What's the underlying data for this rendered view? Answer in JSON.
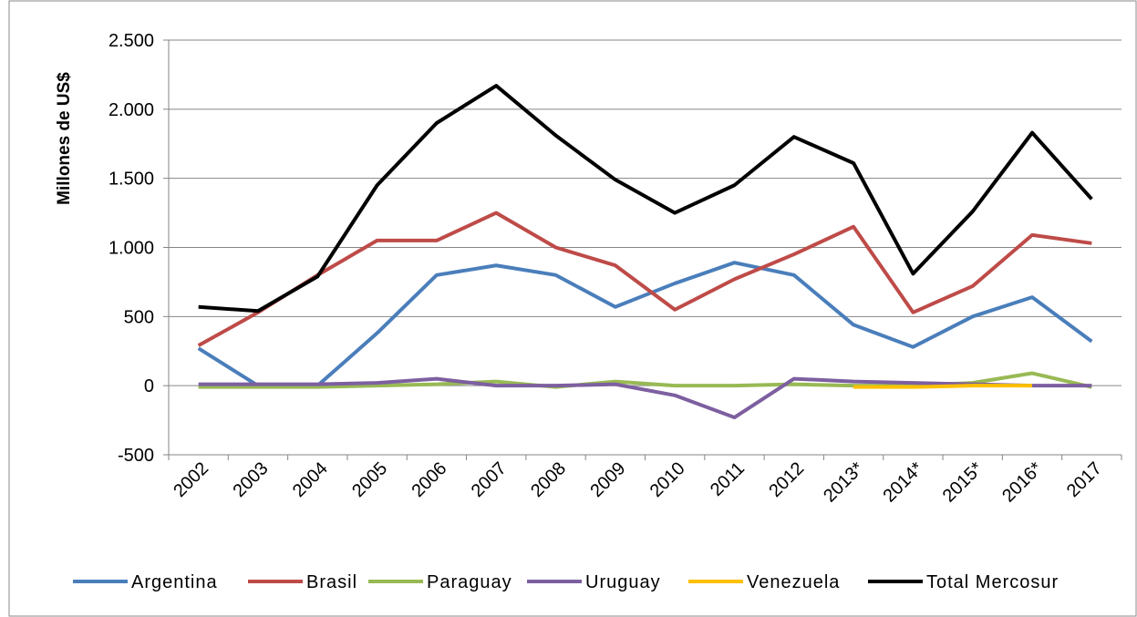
{
  "chart_data": {
    "type": "line",
    "ylabel": "Millones de US$",
    "categories": [
      "2002",
      "2003",
      "2004",
      "2005",
      "2006",
      "2007",
      "2008",
      "2009",
      "2010",
      "2011",
      "2012",
      "2013*",
      "2014*",
      "2015*",
      "2016*",
      "2017"
    ],
    "series": [
      {
        "name": "Argentina",
        "color": "#4a7ebb",
        "values": [
          270,
          0,
          0,
          380,
          800,
          870,
          800,
          570,
          740,
          890,
          800,
          440,
          280,
          500,
          640,
          320
        ]
      },
      {
        "name": "Brasil",
        "color": "#be4b48",
        "values": [
          290,
          530,
          800,
          1050,
          1050,
          1250,
          1000,
          870,
          550,
          770,
          950,
          1150,
          530,
          720,
          1090,
          1030
        ]
      },
      {
        "name": "Paraguay",
        "color": "#98b954",
        "values": [
          -10,
          -10,
          -10,
          0,
          10,
          30,
          -10,
          30,
          0,
          0,
          10,
          0,
          0,
          20,
          90,
          -10
        ]
      },
      {
        "name": "Uruguay",
        "color": "#7d5fa0",
        "values": [
          10,
          10,
          10,
          20,
          50,
          0,
          0,
          10,
          -70,
          -230,
          50,
          30,
          20,
          10,
          0,
          0
        ]
      },
      {
        "name": "Venezuela",
        "color": "#ffc000",
        "values": [
          null,
          null,
          null,
          null,
          null,
          null,
          null,
          null,
          null,
          null,
          null,
          -10,
          -10,
          0,
          0,
          null
        ]
      },
      {
        "name": "Total Mercosur",
        "color": "#000000",
        "values": [
          570,
          540,
          790,
          1450,
          1900,
          2170,
          1810,
          1490,
          1250,
          1450,
          1800,
          1610,
          810,
          1260,
          1830,
          1350
        ]
      }
    ],
    "ylim": [
      -500,
      2500
    ],
    "yticks": [
      -500,
      0,
      500,
      {
        "value": 1000,
        "label": "1.000"
      },
      {
        "value": 1500,
        "label": "1.500"
      },
      {
        "value": 2000,
        "label": "2.000"
      },
      {
        "value": 2500,
        "label": "2.500"
      }
    ],
    "grid": true,
    "legend": "bottom"
  }
}
